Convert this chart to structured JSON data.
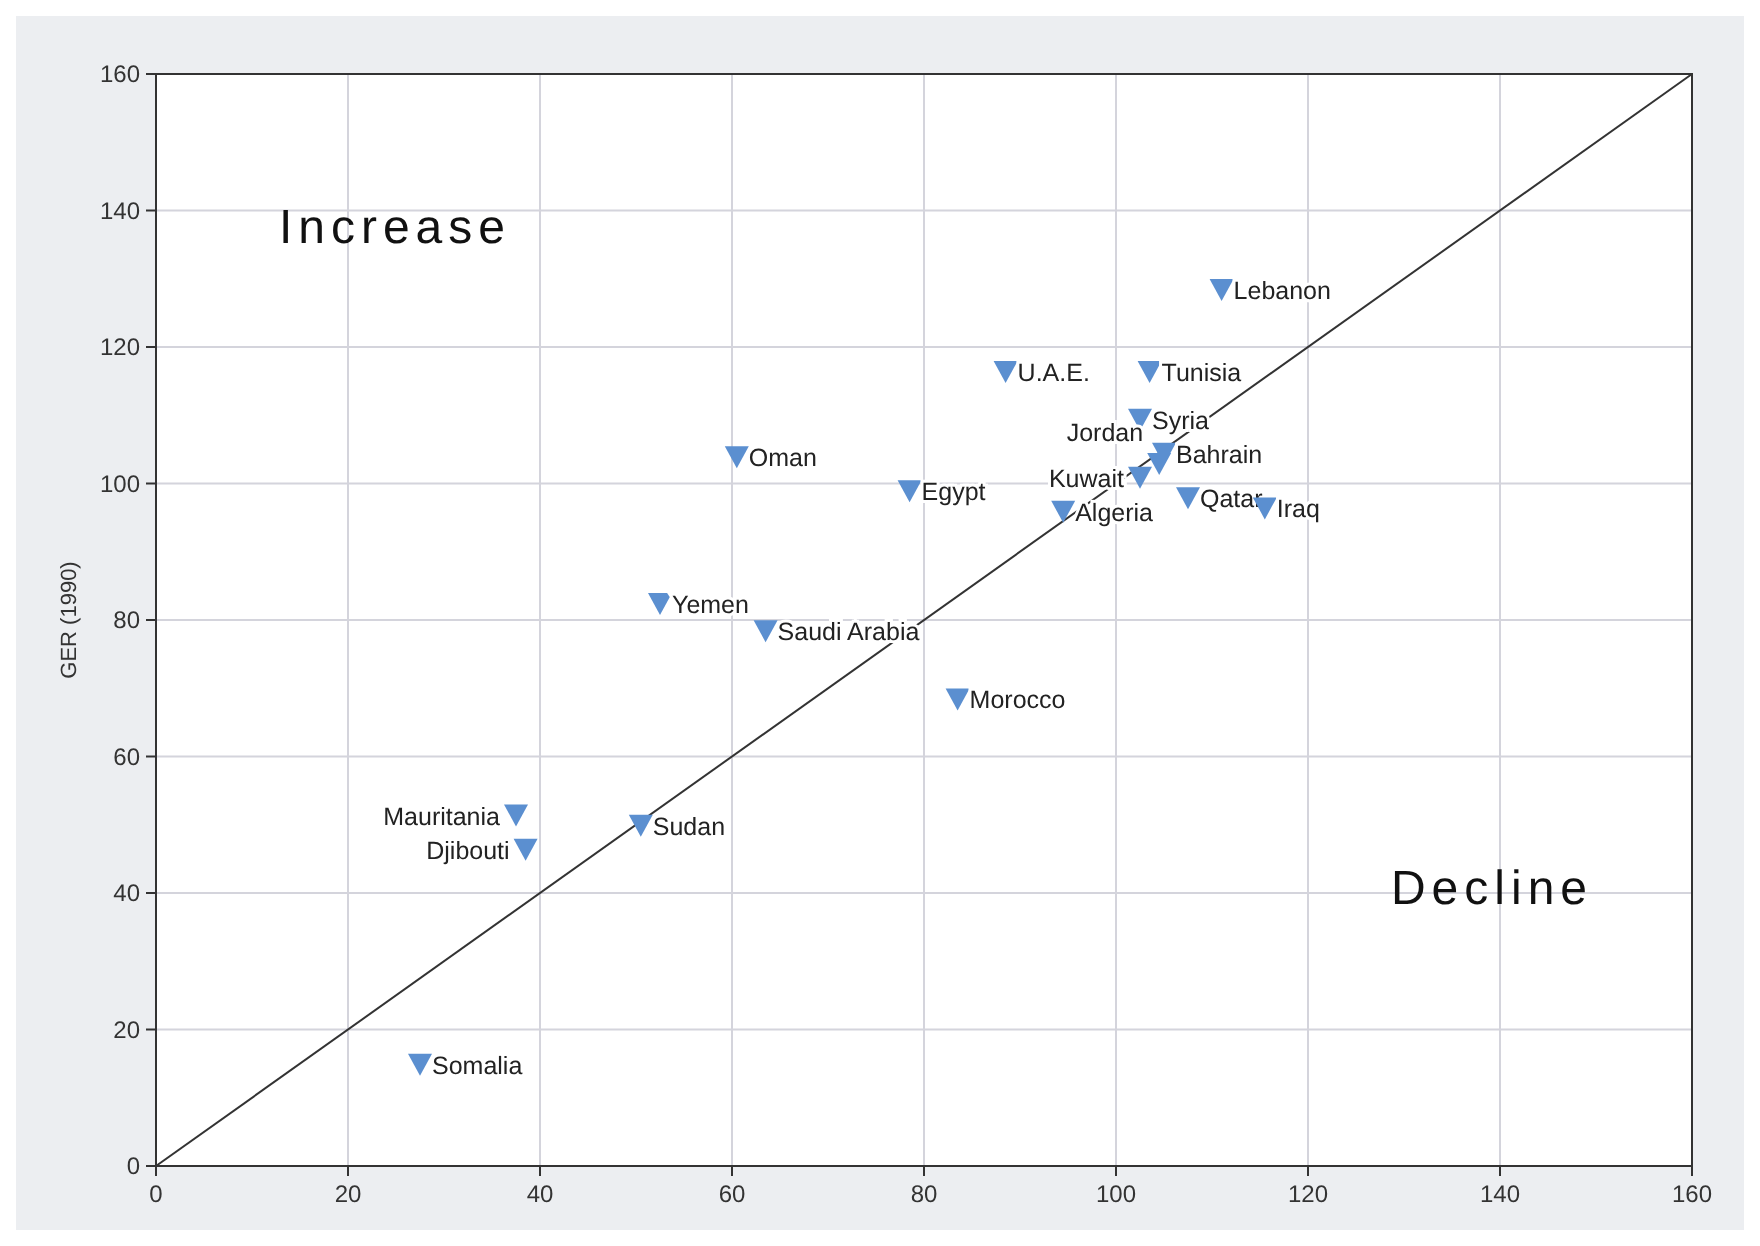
{
  "chart_data": {
    "type": "scatter",
    "ylabel": "GER (1990)",
    "xlim": [
      0,
      160
    ],
    "ylim": [
      0,
      160
    ],
    "xticks": [
      0,
      20,
      40,
      60,
      80,
      100,
      120,
      140,
      160
    ],
    "yticks": [
      0,
      20,
      40,
      60,
      80,
      100,
      120,
      140,
      160
    ],
    "grid": true,
    "marker": "triangle",
    "annotations": [
      "Increase",
      "Decline"
    ],
    "series": [
      {
        "type": "line",
        "color": "#333333",
        "x": [
          0,
          160
        ],
        "values": [
          0,
          160
        ],
        "line_style": "solid",
        "marker": "none"
      },
      {
        "name": "Lebanon",
        "color": "#5b8fd0",
        "x": [
          111
        ],
        "values": [
          128.5
        ]
      },
      {
        "name": "U.A.E.",
        "color": "#5b8fd0",
        "x": [
          88.5
        ],
        "values": [
          116.5
        ]
      },
      {
        "name": "Tunisia",
        "color": "#5b8fd0",
        "x": [
          103.5
        ],
        "values": [
          116.5
        ]
      },
      {
        "name": "Syria",
        "color": "#5b8fd0",
        "x": [
          102.5
        ],
        "values": [
          109.5
        ]
      },
      {
        "name": "Bahrain",
        "color": "#5b8fd0",
        "x": [
          105
        ],
        "values": [
          104.5
        ]
      },
      {
        "name": "Kuwait",
        "color": "#5b8fd0",
        "x": [
          102.5
        ],
        "values": [
          101
        ]
      },
      {
        "name": "Jordan",
        "color": "#5b8fd0",
        "x": [
          104.5
        ],
        "values": [
          103
        ]
      },
      {
        "name": "Qatar",
        "color": "#5b8fd0",
        "x": [
          107.5
        ],
        "values": [
          98
        ]
      },
      {
        "name": "Iraq",
        "color": "#5b8fd0",
        "x": [
          115.5
        ],
        "values": [
          96.5
        ]
      },
      {
        "name": "Algeria",
        "color": "#5b8fd0",
        "x": [
          94.5
        ],
        "values": [
          96
        ]
      },
      {
        "name": "Egypt",
        "color": "#5b8fd0",
        "x": [
          78.5
        ],
        "values": [
          99
        ]
      },
      {
        "name": "Oman",
        "color": "#5b8fd0",
        "x": [
          60.5
        ],
        "values": [
          104
        ]
      },
      {
        "name": "Yemen",
        "color": "#5b8fd0",
        "x": [
          52.5
        ],
        "values": [
          82.5
        ]
      },
      {
        "name": "Saudi Arabia",
        "color": "#5b8fd0",
        "x": [
          63.5
        ],
        "values": [
          78.5
        ]
      },
      {
        "name": "Morocco",
        "color": "#5b8fd0",
        "x": [
          83.5
        ],
        "values": [
          68.5
        ]
      },
      {
        "name": "Mauritania",
        "color": "#5b8fd0",
        "x": [
          37.5
        ],
        "values": [
          51.5
        ]
      },
      {
        "name": "Djibouti",
        "color": "#5b8fd0",
        "x": [
          38.5
        ],
        "values": [
          46.5
        ]
      },
      {
        "name": "Sudan",
        "color": "#5b8fd0",
        "x": [
          50.5
        ],
        "values": [
          50
        ]
      },
      {
        "name": "Somalia",
        "color": "#5b8fd0",
        "x": [
          27.5
        ],
        "values": [
          15
        ]
      }
    ]
  }
}
